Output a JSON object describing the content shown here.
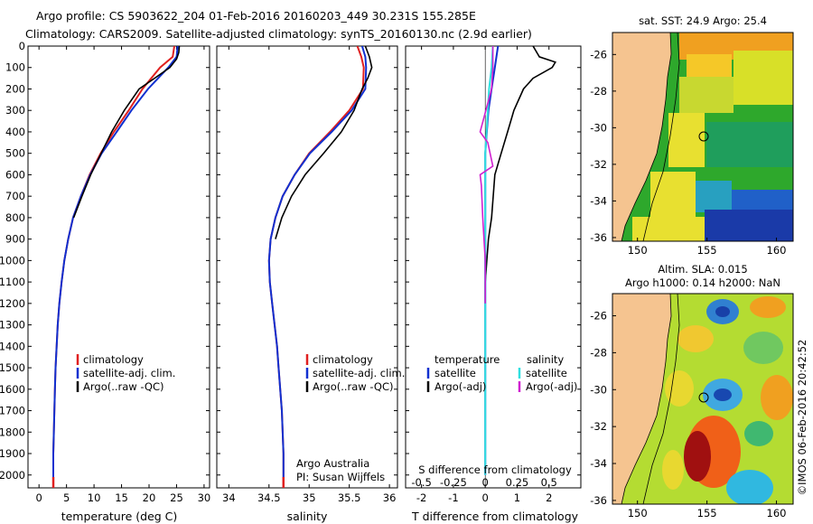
{
  "header": {
    "line1": "Argo profile: CS 5903622_204 01-Feb-2016 20160203_449 30.231S 155.285E",
    "line2": "Climatology: CARS2009. Satellite-adjusted climatology: synTS_20160130.nc (2.9d earlier)"
  },
  "panels": {
    "temperature": {
      "xlabel": "temperature (deg C)",
      "xticks": [
        "0",
        "5",
        "10",
        "15",
        "20",
        "25",
        "30"
      ],
      "legend": [
        "climatology",
        "satellite-adj. clim.",
        "Argo(..raw -QC)"
      ]
    },
    "salinity": {
      "xlabel": "salinity",
      "xticks": [
        "34",
        "34.5",
        "35",
        "35.5",
        "36"
      ],
      "legend": [
        "climatology",
        "satellite-adj. clim.",
        "Argo(..raw -QC)"
      ],
      "credit1": "Argo Australia",
      "credit2": "PI: Susan Wijffels"
    },
    "difference": {
      "top_label": "S difference from climatology",
      "top_ticks": [
        "-0.5",
        "-0.25",
        "0",
        "0.25",
        "0.5"
      ],
      "xlabel": "T difference from climatology",
      "xticks": [
        "-2",
        "-1",
        "0",
        "1",
        "2"
      ],
      "legend_temp_title": "temperature",
      "legend_sal_title": "salinity",
      "legend_temp": [
        "satellite",
        "Argo(-adj)"
      ],
      "legend_sal": [
        "satellite",
        "Argo(-adj)"
      ]
    },
    "depth_ticks": [
      "0",
      "100",
      "200",
      "300",
      "400",
      "500",
      "600",
      "700",
      "800",
      "900",
      "1000",
      "1100",
      "1200",
      "1300",
      "1400",
      "1500",
      "1600",
      "1700",
      "1800",
      "1900",
      "2000"
    ]
  },
  "maps": {
    "sst_title": "sat. SST: 24.9 Argo: 25.4",
    "sla_title1": "Altim. SLA: 0.015",
    "sla_title2": "Argo h1000: 0.14 h2000: NaN",
    "lat_ticks": [
      "-26",
      "-28",
      "-30",
      "-32",
      "-34",
      "-36"
    ],
    "lon_ticks": [
      "150",
      "155",
      "160"
    ]
  },
  "side_label": "©IMOS 06-Feb-2016 20:42:52",
  "colors": {
    "climatology": "#e02020",
    "satellite": "#1030d0",
    "argo": "#000000",
    "sal_satellite": "#30e0e0",
    "sal_argo": "#d020d0",
    "land": "#f5c490"
  },
  "chart_data": [
    {
      "type": "line",
      "name": "temperature profile",
      "xlabel": "temperature (deg C)",
      "ylabel": "",
      "xlim": [
        -2,
        31
      ],
      "ylim": [
        2060,
        0
      ],
      "series": [
        {
          "name": "climatology",
          "x": [
            24.6,
            24.3,
            22.0,
            18.8,
            16.3,
            13.6,
            11.2,
            9.2,
            7.6,
            6.2,
            5.3,
            4.6,
            4.1,
            3.7,
            3.4,
            3.2,
            3.0,
            2.9,
            2.8,
            2.7,
            2.6,
            2.6
          ],
          "y": [
            0,
            50,
            100,
            200,
            300,
            400,
            500,
            600,
            700,
            800,
            900,
            1000,
            1100,
            1200,
            1300,
            1400,
            1500,
            1600,
            1700,
            1800,
            1900,
            2050
          ]
        },
        {
          "name": "satellite-adj. clim.",
          "x": [
            25.2,
            25.0,
            23.5,
            19.8,
            16.8,
            14.1,
            11.4,
            9.3,
            7.6,
            6.2,
            5.3,
            4.6,
            4.1,
            3.7,
            3.4,
            3.2,
            3.0,
            2.9,
            2.8,
            2.7,
            2.6,
            2.6
          ],
          "y": [
            0,
            50,
            100,
            200,
            300,
            400,
            500,
            600,
            700,
            800,
            900,
            1000,
            1100,
            1200,
            1300,
            1400,
            1500,
            1600,
            1700,
            1800,
            1900,
            2050
          ]
        },
        {
          "name": "Argo(..raw -QC)",
          "x": [
            25.5,
            25.4,
            25.0,
            23.8,
            21.0,
            18.2,
            15.5,
            13.2,
            11.3,
            9.4,
            7.8,
            6.3
          ],
          "y": [
            0,
            30,
            60,
            100,
            150,
            200,
            300,
            400,
            500,
            600,
            700,
            800
          ]
        }
      ]
    },
    {
      "type": "line",
      "name": "salinity profile",
      "xlabel": "salinity",
      "ylabel": "",
      "xlim": [
        33.85,
        36.1
      ],
      "ylim": [
        2060,
        0
      ],
      "series": [
        {
          "name": "climatology",
          "x": [
            35.6,
            35.65,
            35.68,
            35.67,
            35.5,
            35.26,
            35.0,
            34.82,
            34.67,
            34.58,
            34.52,
            34.5,
            34.51,
            34.54,
            34.57,
            34.6,
            34.62,
            34.64,
            34.66,
            34.67,
            34.68,
            34.68
          ],
          "y": [
            0,
            50,
            100,
            200,
            300,
            400,
            500,
            600,
            700,
            800,
            900,
            1000,
            1100,
            1200,
            1300,
            1400,
            1500,
            1600,
            1700,
            1800,
            1900,
            2050
          ]
        },
        {
          "name": "satellite-adj. clim.",
          "x": [
            35.66,
            35.7,
            35.71,
            35.7,
            35.53,
            35.28,
            35.01,
            34.82,
            34.67,
            34.58,
            34.52,
            34.5,
            34.51,
            34.54,
            34.57,
            34.6,
            34.62,
            34.64,
            34.66,
            34.67,
            34.68,
            34.68
          ],
          "y": [
            0,
            50,
            100,
            200,
            300,
            400,
            500,
            600,
            700,
            800,
            900,
            1000,
            1100,
            1200,
            1300,
            1400,
            1500,
            1600,
            1700,
            1800,
            1900,
            2050
          ]
        },
        {
          "name": "Argo(..raw -QC)",
          "x": [
            35.7,
            35.75,
            35.78,
            35.73,
            35.66,
            35.56,
            35.4,
            35.18,
            34.95,
            34.78,
            34.66,
            34.58
          ],
          "y": [
            0,
            50,
            100,
            150,
            200,
            300,
            400,
            500,
            600,
            700,
            800,
            900
          ]
        }
      ]
    },
    {
      "type": "line",
      "name": "difference from climatology",
      "xlabel": "T difference from climatology",
      "ylabel": "",
      "xlim": [
        -2.5,
        3.0
      ],
      "ylim": [
        2060,
        0
      ],
      "series": [
        {
          "name": "temperature satellite",
          "x": [
            0.4,
            0.3,
            0.2,
            0.1,
            0.05,
            0.0,
            0.0,
            0.0,
            0.0,
            0.0
          ],
          "y": [
            0,
            100,
            200,
            300,
            400,
            500,
            700,
            1000,
            1500,
            2000
          ]
        },
        {
          "name": "temperature Argo(-adj)",
          "x": [
            1.5,
            1.7,
            2.2,
            2.1,
            1.5,
            1.2,
            0.9,
            0.7,
            0.5,
            0.3,
            0.25,
            0.2,
            0.1,
            0.05,
            0.0,
            0.0
          ],
          "y": [
            0,
            50,
            75,
            100,
            150,
            200,
            300,
            400,
            500,
            600,
            700,
            800,
            900,
            1000,
            1100,
            1200
          ]
        },
        {
          "name": "salinity satellite",
          "x": [
            0.06,
            0.05,
            0.03,
            0.02,
            0.0,
            0.0,
            0.0
          ],
          "y": [
            0,
            100,
            200,
            300,
            500,
            1000,
            2000
          ]
        },
        {
          "name": "salinity Argo(-adj)",
          "x": [
            0.06,
            0.06,
            0.05,
            -0.04,
            0.02,
            0.06,
            -0.04,
            -0.03,
            -0.02,
            0.0,
            0.0
          ],
          "y": [
            0,
            100,
            200,
            400,
            450,
            560,
            600,
            650,
            800,
            1000,
            1200
          ]
        }
      ]
    }
  ]
}
